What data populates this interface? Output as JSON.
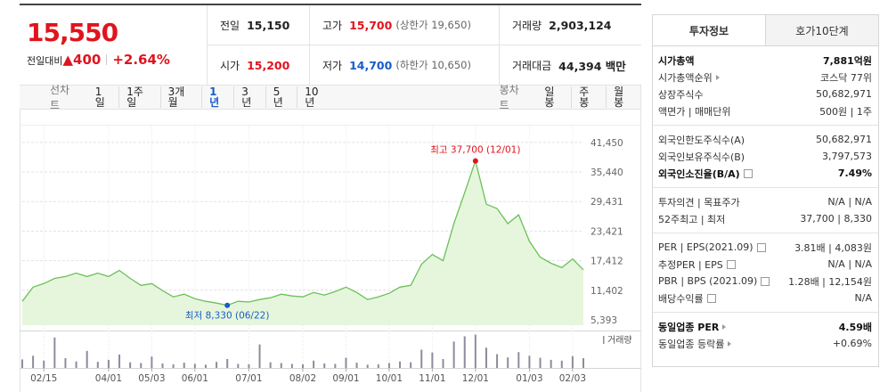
{
  "quote": {
    "price": "15,550",
    "change_label": "전일대비",
    "change": "▲400",
    "change_rate": "+2.64%",
    "rows": [
      [
        {
          "label": "전일",
          "value": "15,150"
        },
        {
          "label": "고가",
          "value": "15,700",
          "note": "(상한가 19,650)",
          "tone": "up"
        },
        {
          "label": "거래량",
          "value": "2,903,124"
        }
      ],
      [
        {
          "label": "시가",
          "value": "15,200",
          "tone": "up"
        },
        {
          "label": "저가",
          "value": "14,700",
          "note": "(하한가 10,650)",
          "tone": "down"
        },
        {
          "label": "거래대금",
          "value": "44,394 백만"
        }
      ]
    ]
  },
  "menu": {
    "line_label": "선차트",
    "line_periods": [
      "1일",
      "1주일",
      "3개월",
      "1년",
      "3년",
      "5년",
      "10년"
    ],
    "selected_index": 3,
    "candle_label": "봉차트",
    "candle_periods": [
      "일봉",
      "주봉",
      "월봉"
    ]
  },
  "chart_data": {
    "type": "line",
    "categories": [
      null,
      null,
      "02/15",
      null,
      null,
      null,
      null,
      null,
      "04/01",
      null,
      null,
      null,
      "05/03",
      null,
      null,
      null,
      "06/01",
      null,
      null,
      null,
      null,
      "07/01",
      null,
      null,
      null,
      null,
      "08/02",
      null,
      null,
      null,
      "09/01",
      null,
      null,
      null,
      "10/01",
      null,
      null,
      null,
      "11/01",
      null,
      null,
      null,
      "12/01",
      null,
      null,
      null,
      null,
      "01/03",
      null,
      null,
      null,
      "02/03",
      null
    ],
    "values": [
      9160,
      12030,
      12750,
      13800,
      14180,
      14900,
      14180,
      14900,
      14180,
      15440,
      13800,
      12390,
      12750,
      11320,
      10060,
      10600,
      9700,
      9160,
      8800,
      8330,
      9160,
      9000,
      9520,
      9880,
      10600,
      10240,
      10060,
      10950,
      10420,
      11130,
      12030,
      10950,
      9520,
      10060,
      10780,
      12030,
      12390,
      16700,
      18670,
      17420,
      24950,
      31230,
      37700,
      28900,
      28000,
      24950,
      26740,
      21360,
      18130,
      16880,
      16000,
      17770,
      15550
    ],
    "color": "#6cc05a",
    "fill": "#e6f6dc",
    "ylim": [
      4300,
      45050
    ],
    "yticks": [
      {
        "value": 5393,
        "label": "5,393"
      },
      {
        "value": 11402,
        "label": "11,402"
      },
      {
        "value": 17412,
        "label": "17,412"
      },
      {
        "value": 23421,
        "label": "23,421"
      },
      {
        "value": 29431,
        "label": "29,431"
      },
      {
        "value": 35440,
        "label": "35,440"
      },
      {
        "value": 41450,
        "label": "41,450"
      }
    ],
    "grid": true,
    "annotations": {
      "high": "최고 37,700 (12/01)",
      "high_color": "#e0141e",
      "low": "최저 8,330 (06/22)",
      "low_color": "#1a5cc8"
    },
    "volume": {
      "label": "거래량",
      "color": "#8c8c9c",
      "ylim": [
        0,
        9
      ],
      "values": [
        2.1,
        3.0,
        1.8,
        7.5,
        2.4,
        1.6,
        4.2,
        1.5,
        2.0,
        3.3,
        1.4,
        1.2,
        2.8,
        1.1,
        0.9,
        1.3,
        1.0,
        0.8,
        1.5,
        2.2,
        1.0,
        0.9,
        5.8,
        1.4,
        1.2,
        1.0,
        0.9,
        1.8,
        1.1,
        1.0,
        2.5,
        1.3,
        0.8,
        0.9,
        1.2,
        1.6,
        1.4,
        4.5,
        3.8,
        2.2,
        6.5,
        7.8,
        8.2,
        5.0,
        3.4,
        2.6,
        3.9,
        3.0,
        2.5,
        2.0,
        1.8,
        2.9,
        2.4
      ]
    }
  },
  "info": {
    "tabs": [
      "투자정보",
      "호가10단계"
    ],
    "selected_tab": 0,
    "sections": [
      [
        {
          "label": "시가총액",
          "value": "7,881억원",
          "bold": true
        },
        {
          "label": "시가총액순위",
          "value": "코스닥 77위",
          "arrow": true
        },
        {
          "label": "상장주식수",
          "value": "50,682,971"
        },
        {
          "label": "액면가 | 매매단위",
          "value": "500원 | 1주"
        }
      ],
      [
        {
          "label": "외국인한도주식수(A)",
          "value": "50,682,971"
        },
        {
          "label": "외국인보유주식수(B)",
          "value": "3,797,573"
        },
        {
          "label": "외국인소진율(B/A)",
          "value": "7.49%",
          "bold": true,
          "help": true
        }
      ],
      [
        {
          "label": "투자의견 | 목표주가",
          "value": "N/A | N/A"
        },
        {
          "label": "52주최고 | 최저",
          "value": "37,700 | 8,330"
        }
      ],
      [
        {
          "label": "PER | EPS(2021.09)",
          "value": "3.81배 | 4,083원",
          "help": true
        },
        {
          "label": "추정PER | EPS",
          "value": "N/A | N/A",
          "help": true
        },
        {
          "label": "PBR | BPS (2021.09)",
          "value": "1.28배 | 12,154원",
          "help": true
        },
        {
          "label": "배당수익률",
          "value": "N/A",
          "help": true
        }
      ],
      [
        {
          "label": "동일업종 PER",
          "value": "4.59배",
          "bold": true,
          "arrow": true
        },
        {
          "label": "동일업종 등락률",
          "value": "+0.69%",
          "arrow": true,
          "tone": "up"
        }
      ]
    ]
  }
}
